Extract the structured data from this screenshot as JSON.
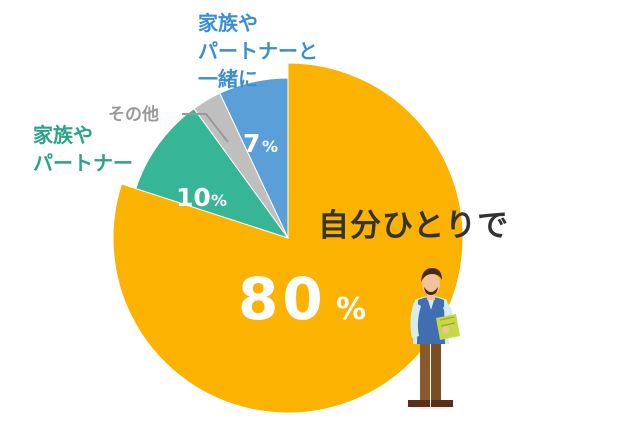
{
  "chart_data": {
    "type": "pie",
    "slices": [
      {
        "label": "自分ひとりで",
        "value": 80,
        "value_text": "80",
        "unit": "%",
        "color": "#FBB200"
      },
      {
        "label": "家族やパートナー",
        "label_lines": [
          "家族や",
          "パートナー"
        ],
        "value": 10,
        "value_text": "10",
        "unit": "%",
        "color": "#36B597"
      },
      {
        "label": "その他",
        "label_lines": [
          "その他"
        ],
        "value": 3,
        "value_text": "",
        "unit": "",
        "color": "#BFBFBF"
      },
      {
        "label": "家族やパートナーと一緒に",
        "label_lines": [
          "家族や",
          "パートナーと",
          "一緒に"
        ],
        "value": 7,
        "value_text": "7",
        "unit": "%",
        "color": "#5B9FD8"
      }
    ],
    "start": "12 o'clock",
    "direction": "clockwise",
    "exploded_slice": "自分ひとりで",
    "legend": "none"
  },
  "colors": {
    "text_dark": "#333333",
    "text_gray": "#999999",
    "label_white": "#FFFFFF"
  },
  "illustration": {
    "icon": "standing-man-holding-notebook-icon"
  }
}
